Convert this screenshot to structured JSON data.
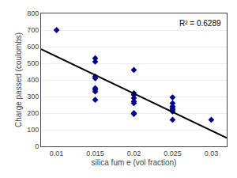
{
  "chart_data": {
    "type": "scatter",
    "xlabel": "silica fum e (vol fraction)",
    "ylabel": "Charge passed (coulombs)",
    "annotation": "R² = 0.6289",
    "series": [
      {
        "type": "scatter",
        "color": "#00008B",
        "marker": "diamond",
        "x": [
          0.01,
          0.015,
          0.015,
          0.015,
          0.015,
          0.015,
          0.015,
          0.015,
          0.015,
          0.02,
          0.02,
          0.02,
          0.02,
          0.02,
          0.02,
          0.02,
          0.02,
          0.025,
          0.025,
          0.025,
          0.025,
          0.025,
          0.025,
          0.025,
          0.03
        ],
        "values": [
          700,
          530,
          510,
          420,
          410,
          350,
          340,
          330,
          280,
          460,
          320,
          310,
          290,
          270,
          260,
          200,
          195,
          295,
          260,
          240,
          230,
          220,
          210,
          160,
          160
        ]
      },
      {
        "type": "line",
        "color": "#000000",
        "line_style": "solid",
        "x": [
          0.008,
          0.032
        ],
        "values": [
          584.5,
          50.5
        ]
      }
    ],
    "xlim": [
      0.008,
      0.032
    ],
    "ylim": [
      0,
      800
    ],
    "xticks": [
      0.01,
      0.015,
      0.02,
      0.025,
      0.03
    ],
    "yticks": [
      0,
      100,
      200,
      300,
      400,
      500,
      600,
      700,
      800
    ],
    "grid": "y"
  }
}
